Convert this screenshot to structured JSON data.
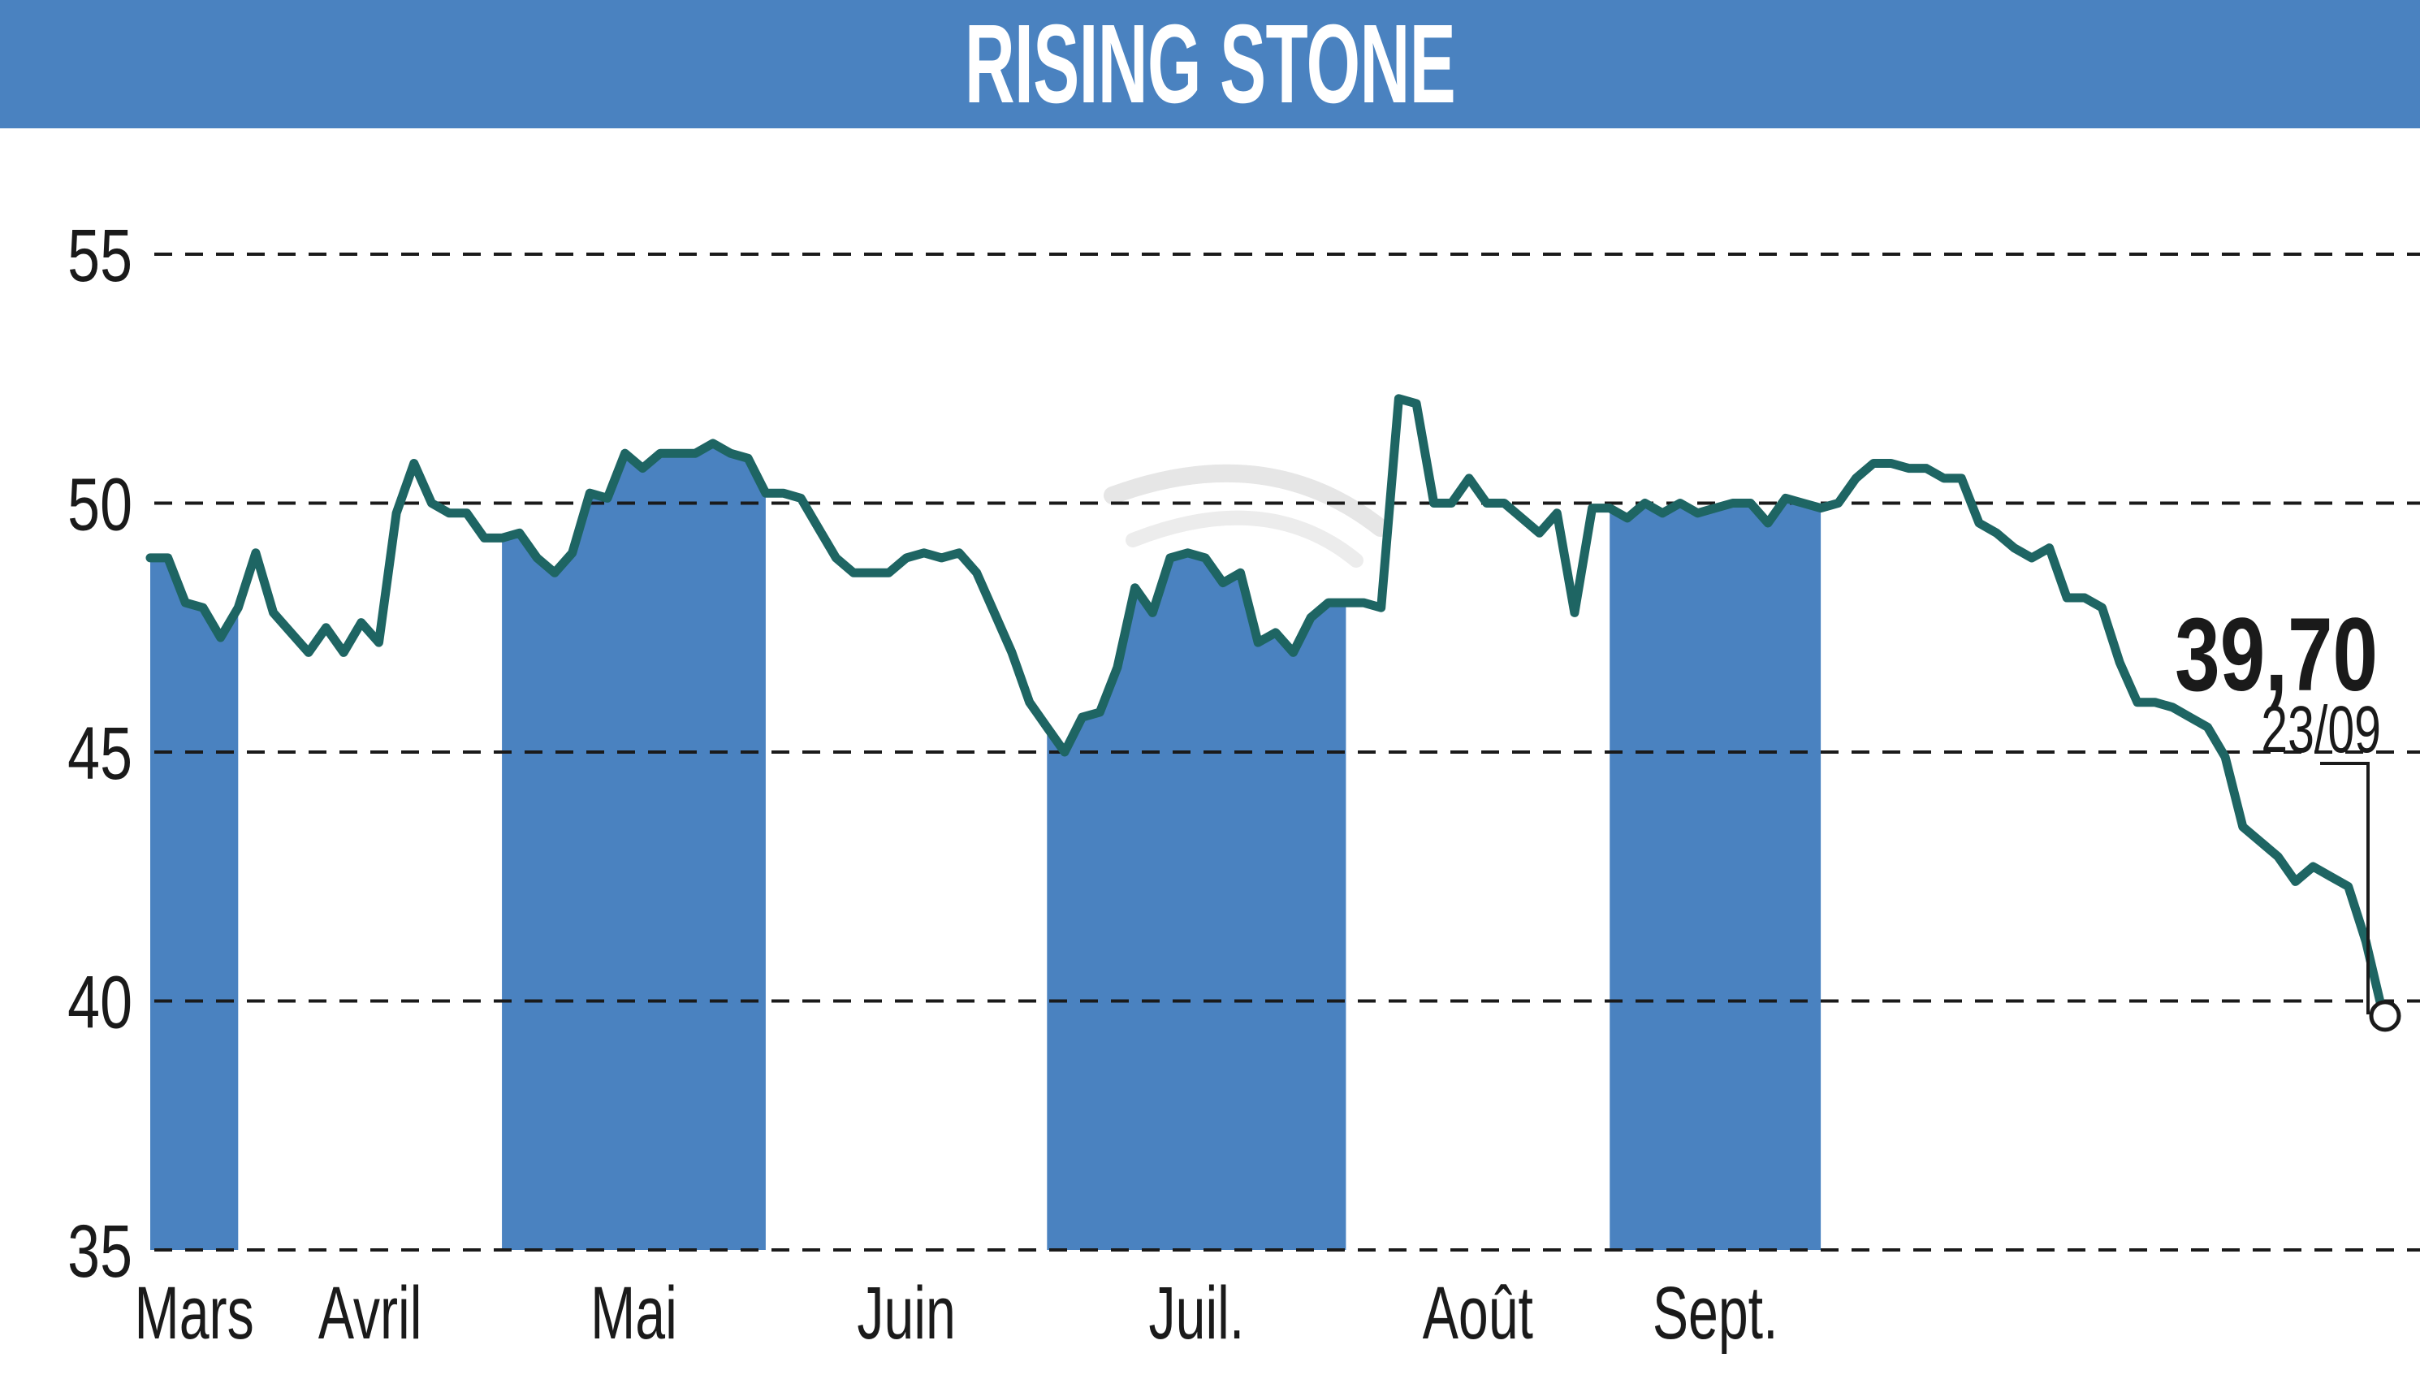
{
  "header": {
    "title": "RISING STONE"
  },
  "colors": {
    "title_bar": "#4a82c0",
    "band_fill": "#4a82c0",
    "price_line": "#1e6563",
    "grid": "#1a1a1a",
    "text": "#1a1a1a"
  },
  "chart_data": {
    "type": "line",
    "title": "RISING STONE",
    "xlabel": "",
    "ylabel": "",
    "ylim": [
      35,
      56.5
    ],
    "y_ticks": [
      35,
      40,
      45,
      50,
      55
    ],
    "grid": "horizontal dashed",
    "months": [
      {
        "label": "Mars",
        "from": 0,
        "to": 5,
        "shaded": true
      },
      {
        "label": "Avril",
        "from": 5,
        "to": 20,
        "shaded": false
      },
      {
        "label": "Mai",
        "from": 20,
        "to": 35,
        "shaded": true
      },
      {
        "label": "Juin",
        "from": 35,
        "to": 51,
        "shaded": false
      },
      {
        "label": "Juil.",
        "from": 51,
        "to": 68,
        "shaded": true
      },
      {
        "label": "Août",
        "from": 68,
        "to": 83,
        "shaded": false
      },
      {
        "label": "Sept.",
        "from": 83,
        "to": 95,
        "shaded": true
      }
    ],
    "series": [
      {
        "values": [
          48.9,
          48.9,
          48.0,
          47.9,
          47.3,
          47.9,
          49.0,
          47.8,
          47.4,
          47.0,
          47.5,
          47.0,
          47.6,
          47.2,
          49.8,
          50.8,
          50.0,
          49.8,
          49.8,
          49.3,
          49.3,
          49.4,
          48.9,
          48.6,
          49.0,
          50.2,
          50.1,
          51.0,
          50.7,
          51.0,
          51.0,
          51.0,
          51.2,
          51.0,
          50.9,
          50.2,
          50.2,
          50.1,
          49.5,
          48.9,
          48.6,
          48.6,
          48.6,
          48.9,
          49.0,
          48.9,
          49.0,
          48.6,
          47.8,
          47.0,
          46.0,
          45.5,
          45.0,
          45.7,
          45.8,
          46.7,
          48.3,
          47.8,
          48.9,
          49.0,
          48.9,
          48.4,
          48.6,
          47.2,
          47.4,
          47.0,
          47.7,
          48.0,
          48.0,
          48.0,
          47.9,
          52.1,
          52.0,
          50.0,
          50.0,
          50.5,
          50.0,
          50.0,
          49.7,
          49.4,
          49.8,
          47.8,
          49.9,
          49.9,
          49.7,
          50.0,
          49.8,
          50.0,
          49.8,
          49.9,
          50.0,
          50.0,
          49.6,
          50.1,
          50.0,
          49.9,
          50.0,
          50.5,
          50.8,
          50.8,
          50.7,
          50.7,
          50.5,
          50.5,
          49.6,
          49.4,
          49.1,
          48.9,
          49.1,
          48.1,
          48.1,
          47.9,
          46.8,
          46.0,
          46.0,
          45.9,
          45.7,
          45.5,
          44.9,
          43.5,
          43.2,
          42.9,
          42.4,
          42.7,
          42.5,
          42.3,
          41.2,
          39.7
        ]
      }
    ],
    "last_value_label": "39,70",
    "last_date_label": "23/09"
  }
}
